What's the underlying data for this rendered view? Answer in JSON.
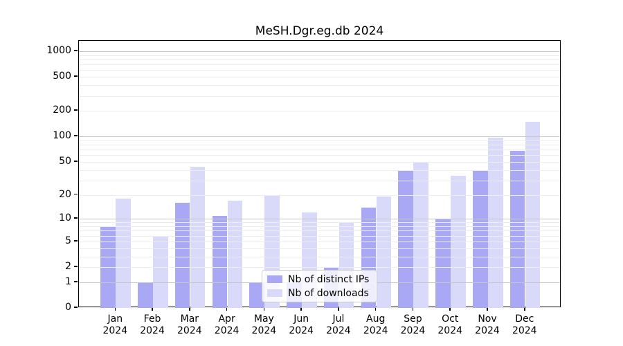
{
  "title": "MeSH.Dgr.eg.db 2024",
  "chart_data": {
    "type": "bar",
    "title": "MeSH.Dgr.eg.db 2024",
    "categories": [
      "Jan",
      "Feb",
      "Mar",
      "Apr",
      "May",
      "Jun",
      "Jul",
      "Aug",
      "Sep",
      "Oct",
      "Nov",
      "Dec"
    ],
    "category_year": "2024",
    "series": [
      {
        "name": "Nb of distinct IPs",
        "color": "#a8a8f4",
        "values": [
          8,
          1,
          16,
          11,
          1,
          1,
          2,
          14,
          39,
          10,
          39,
          67
        ]
      },
      {
        "name": "Nb of downloads",
        "color": "#d9d9fa",
        "values": [
          18,
          6,
          44,
          17,
          20,
          12,
          9,
          19,
          50,
          34,
          97,
          150
        ]
      }
    ],
    "xlabel": "",
    "ylabel": "",
    "yscale": "log1p",
    "ylim": [
      0,
      1300
    ],
    "y_ticks": [
      0,
      1,
      2,
      5,
      10,
      20,
      50,
      100,
      200,
      500,
      1000
    ],
    "y_major_gridlines": [
      1,
      10,
      100,
      1000
    ],
    "grid": true,
    "legend_position": "lower center"
  },
  "colors": {
    "bar_distinct_ips": "#a8a8f4",
    "bar_downloads": "#d9d9fa",
    "grid_minor": "#ededed",
    "grid_major": "#c6c6c6",
    "axis": "#000000",
    "background": "#ffffff"
  }
}
